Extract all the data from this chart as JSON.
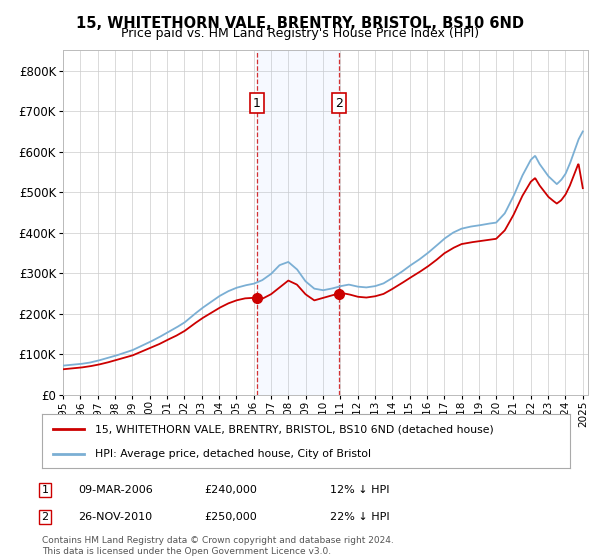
{
  "title": "15, WHITETHORN VALE, BRENTRY, BRISTOL, BS10 6ND",
  "subtitle": "Price paid vs. HM Land Registry's House Price Index (HPI)",
  "ylim": [
    0,
    850000
  ],
  "yticks": [
    0,
    100000,
    200000,
    300000,
    400000,
    500000,
    600000,
    700000,
    800000
  ],
  "ytick_labels": [
    "£0",
    "£100K",
    "£200K",
    "£300K",
    "£400K",
    "£500K",
    "£600K",
    "£700K",
    "£800K"
  ],
  "hpi_color": "#7bafd4",
  "price_color": "#cc0000",
  "sale1_date": 2006.19,
  "sale1_price": 240000,
  "sale1_label": "1",
  "sale1_text": "09-MAR-2006",
  "sale1_amount": "£240,000",
  "sale1_note": "12% ↓ HPI",
  "sale2_date": 2010.91,
  "sale2_price": 250000,
  "sale2_label": "2",
  "sale2_text": "26-NOV-2010",
  "sale2_amount": "£250,000",
  "sale2_note": "22% ↓ HPI",
  "legend_line1": "15, WHITETHORN VALE, BRENTRY, BRISTOL, BS10 6ND (detached house)",
  "legend_line2": "HPI: Average price, detached house, City of Bristol",
  "footer": "Contains HM Land Registry data © Crown copyright and database right 2024.\nThis data is licensed under the Open Government Licence v3.0.",
  "background_color": "#ffffff",
  "grid_color": "#cccccc",
  "hpi_years": [
    1995,
    1995.5,
    1996,
    1996.5,
    1997,
    1997.5,
    1998,
    1998.5,
    1999,
    1999.5,
    2000,
    2000.5,
    2001,
    2001.5,
    2002,
    2002.5,
    2003,
    2003.5,
    2004,
    2004.5,
    2005,
    2005.5,
    2006,
    2006.5,
    2007,
    2007.5,
    2008,
    2008.5,
    2009,
    2009.5,
    2010,
    2010.5,
    2011,
    2011.5,
    2012,
    2012.5,
    2013,
    2013.5,
    2014,
    2014.5,
    2015,
    2015.5,
    2016,
    2016.5,
    2017,
    2017.5,
    2018,
    2018.5,
    2019,
    2019.5,
    2020,
    2020.5,
    2021,
    2021.5,
    2022,
    2022.25,
    2022.5,
    2022.75,
    2023,
    2023.25,
    2023.5,
    2023.75,
    2024,
    2024.25,
    2024.5,
    2024.75,
    2025
  ],
  "hpi_vals": [
    72000,
    74000,
    76000,
    79000,
    84000,
    90000,
    96000,
    103000,
    110000,
    120000,
    130000,
    141000,
    153000,
    165000,
    178000,
    196000,
    213000,
    228000,
    243000,
    255000,
    264000,
    270000,
    274000,
    283000,
    298000,
    320000,
    328000,
    310000,
    280000,
    262000,
    258000,
    262000,
    268000,
    272000,
    267000,
    265000,
    268000,
    275000,
    288000,
    302000,
    318000,
    332000,
    348000,
    366000,
    385000,
    400000,
    410000,
    415000,
    418000,
    422000,
    425000,
    448000,
    490000,
    540000,
    580000,
    590000,
    570000,
    555000,
    540000,
    530000,
    520000,
    530000,
    545000,
    570000,
    600000,
    630000,
    650000
  ],
  "price_years": [
    1995,
    1995.5,
    1996,
    1996.5,
    1997,
    1997.5,
    1998,
    1998.5,
    1999,
    1999.5,
    2000,
    2000.5,
    2001,
    2001.5,
    2002,
    2002.5,
    2003,
    2003.5,
    2004,
    2004.5,
    2005,
    2005.5,
    2006.19,
    2006.5,
    2007,
    2007.5,
    2008,
    2008.5,
    2009,
    2009.5,
    2010.91,
    2011,
    2011.5,
    2012,
    2012.5,
    2013,
    2013.5,
    2014,
    2014.5,
    2015,
    2015.5,
    2016,
    2016.5,
    2017,
    2017.5,
    2018,
    2018.5,
    2019,
    2019.5,
    2020,
    2020.5,
    2021,
    2021.5,
    2022,
    2022.25,
    2022.5,
    2022.75,
    2023,
    2023.25,
    2023.5,
    2023.75,
    2024,
    2024.25,
    2024.5,
    2024.75,
    2025
  ],
  "price_vals": [
    63000,
    65000,
    67000,
    70000,
    74000,
    79000,
    85000,
    91000,
    97000,
    106000,
    115000,
    124000,
    135000,
    145000,
    157000,
    173000,
    188000,
    201000,
    214000,
    225000,
    233000,
    238000,
    240000,
    237000,
    248000,
    265000,
    282000,
    272000,
    248000,
    233000,
    250000,
    252000,
    248000,
    242000,
    240000,
    243000,
    249000,
    261000,
    274000,
    288000,
    301000,
    315000,
    331000,
    349000,
    362000,
    372000,
    376000,
    379000,
    382000,
    385000,
    406000,
    444000,
    490000,
    526000,
    535000,
    517000,
    503000,
    489000,
    480000,
    472000,
    480000,
    494000,
    516000,
    544000,
    571000,
    510000
  ]
}
